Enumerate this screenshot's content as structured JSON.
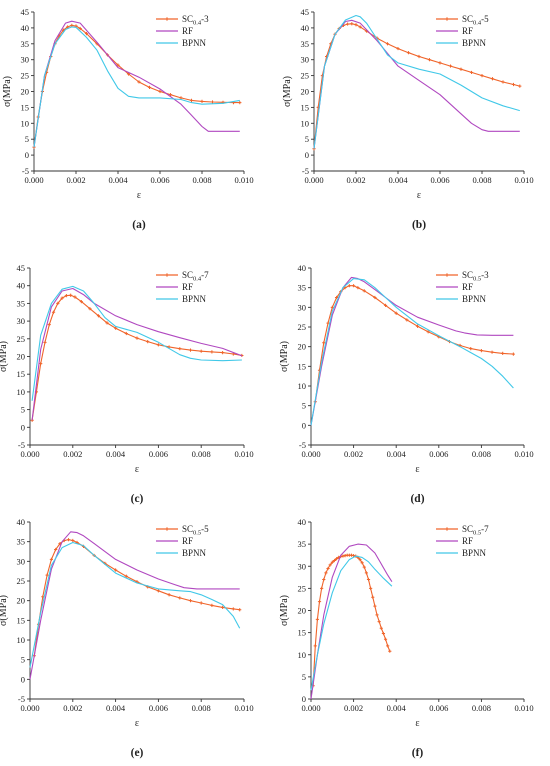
{
  "chart_data": [
    {
      "type": "line",
      "panel": "(a)",
      "xlabel": "ε",
      "ylabel": "σ(MPa)",
      "xlim": [
        0,
        0.01
      ],
      "ylim": [
        -5,
        45
      ],
      "xticks": [
        "0.000",
        "0.002",
        "0.004",
        "0.006",
        "0.008",
        "0.010"
      ],
      "yticks": [
        "-5",
        "0",
        "5",
        "10",
        "15",
        "20",
        "25",
        "30",
        "35",
        "40",
        "45"
      ],
      "legend_position": "top-right",
      "series": [
        {
          "name": "SC0.4-3",
          "label_main": "SC",
          "label_sub": "0.4",
          "label_suffix": "-3",
          "color": "#f0642a",
          "marker": true,
          "x": [
            0,
            0.0002,
            0.0004,
            0.0006,
            0.0008,
            0.001,
            0.0012,
            0.0014,
            0.0016,
            0.0018,
            0.002,
            0.0022,
            0.0025,
            0.003,
            0.0035,
            0.004,
            0.0045,
            0.005,
            0.0055,
            0.006,
            0.0065,
            0.007,
            0.0075,
            0.008,
            0.0085,
            0.009,
            0.0095,
            0.0098
          ],
          "y": [
            2.5,
            12,
            20,
            26,
            31,
            35,
            37.5,
            39.3,
            40.3,
            40.8,
            40.6,
            39.8,
            38.2,
            35,
            31.5,
            28.3,
            25.5,
            23,
            21.3,
            20,
            19,
            18,
            17.2,
            16.9,
            16.7,
            16.6,
            16.5,
            16.5
          ]
        },
        {
          "name": "RF",
          "color": "#b048c0",
          "marker": false,
          "x": [
            0,
            0.0005,
            0.001,
            0.0015,
            0.0018,
            0.0022,
            0.003,
            0.004,
            0.005,
            0.006,
            0.007,
            0.0075,
            0.008,
            0.0083,
            0.009,
            0.0098
          ],
          "y": [
            2.5,
            25,
            36,
            41.5,
            42.1,
            41.5,
            35.5,
            27.5,
            24.5,
            20.8,
            16,
            12.5,
            9,
            7.5,
            7.5,
            7.5
          ]
        },
        {
          "name": "BPNN",
          "color": "#40c8e8",
          "marker": false,
          "x": [
            0,
            0.0005,
            0.001,
            0.0015,
            0.0018,
            0.002,
            0.0025,
            0.003,
            0.0035,
            0.004,
            0.0045,
            0.005,
            0.006,
            0.007,
            0.0075,
            0.008,
            0.009,
            0.0098
          ],
          "y": [
            2.5,
            25,
            35,
            39.5,
            40.3,
            40.2,
            37,
            33,
            26.5,
            21,
            18.5,
            18,
            18,
            17.5,
            16.5,
            16,
            16.3,
            17.2
          ]
        }
      ]
    },
    {
      "type": "line",
      "panel": "(b)",
      "xlabel": "ε",
      "ylabel": "σ(MPa)",
      "xlim": [
        0,
        0.01
      ],
      "ylim": [
        -5,
        45
      ],
      "xticks": [
        "0.000",
        "0.002",
        "0.004",
        "0.006",
        "0.008",
        "0.010"
      ],
      "yticks": [
        "-5",
        "0",
        "5",
        "10",
        "15",
        "20",
        "25",
        "30",
        "35",
        "40",
        "45"
      ],
      "legend_position": "top-right",
      "series": [
        {
          "name": "SC0.4-5",
          "label_main": "SC",
          "label_sub": "0.4",
          "label_suffix": "-5",
          "color": "#f0642a",
          "marker": true,
          "x": [
            0,
            0.0002,
            0.0004,
            0.0006,
            0.0008,
            0.001,
            0.0012,
            0.0014,
            0.0016,
            0.0018,
            0.002,
            0.0022,
            0.0025,
            0.003,
            0.0035,
            0.004,
            0.0045,
            0.005,
            0.0055,
            0.006,
            0.0065,
            0.007,
            0.0075,
            0.008,
            0.0085,
            0.009,
            0.0095,
            0.0098
          ],
          "y": [
            2,
            15,
            25,
            31,
            35,
            38,
            39.8,
            40.8,
            41.2,
            41.3,
            41,
            40.3,
            39,
            36.8,
            35,
            33.5,
            32.2,
            31,
            30,
            29,
            28,
            27,
            26,
            25,
            24,
            23,
            22.2,
            21.7
          ]
        },
        {
          "name": "RF",
          "color": "#b048c0",
          "marker": false,
          "x": [
            0,
            0.0005,
            0.001,
            0.0015,
            0.0018,
            0.0022,
            0.003,
            0.004,
            0.005,
            0.006,
            0.007,
            0.0075,
            0.008,
            0.0083,
            0.009,
            0.0098
          ],
          "y": [
            2,
            28,
            38,
            42,
            42.4,
            41.5,
            36,
            28,
            23.5,
            19,
            13,
            10,
            8,
            7.5,
            7.5,
            7.5
          ]
        },
        {
          "name": "BPNN",
          "color": "#40c8e8",
          "marker": false,
          "x": [
            0,
            0.0005,
            0.001,
            0.0015,
            0.002,
            0.0022,
            0.0025,
            0.003,
            0.0035,
            0.004,
            0.005,
            0.006,
            0.007,
            0.008,
            0.009,
            0.0098
          ],
          "y": [
            2,
            28,
            38,
            42.5,
            43.9,
            43.5,
            41.5,
            36.5,
            31.5,
            29,
            27,
            25.5,
            22,
            18,
            15.5,
            14
          ]
        }
      ]
    },
    {
      "type": "line",
      "panel": "(c)",
      "xlabel": "ε",
      "ylabel": "σ(MPa)",
      "xlim": [
        0,
        0.01
      ],
      "ylim": [
        -5,
        45
      ],
      "xticks": [
        "0.000",
        "0.002",
        "0.004",
        "0.006",
        "0.008",
        "0.010"
      ],
      "yticks": [
        "-5",
        "0",
        "5",
        "10",
        "15",
        "20",
        "25",
        "30",
        "35",
        "40",
        "45"
      ],
      "legend_position": "top-right",
      "series": [
        {
          "name": "SC0.4-7",
          "label_main": "SC",
          "label_sub": "0.4",
          "label_suffix": "-7",
          "color": "#f0642a",
          "marker": true,
          "x": [
            0.0001,
            0.0003,
            0.0005,
            0.0007,
            0.0009,
            0.0011,
            0.0013,
            0.0015,
            0.0017,
            0.0019,
            0.0021,
            0.0024,
            0.0028,
            0.0032,
            0.0036,
            0.004,
            0.0045,
            0.005,
            0.0055,
            0.006,
            0.0065,
            0.007,
            0.0075,
            0.008,
            0.0085,
            0.009,
            0.0095,
            0.0099
          ],
          "y": [
            2,
            10,
            18,
            24,
            29,
            32.5,
            35,
            36.5,
            37.2,
            37.3,
            36.8,
            35.5,
            33.5,
            31.5,
            29.5,
            28,
            26.5,
            25.2,
            24.2,
            23.3,
            22.7,
            22.2,
            21.8,
            21.5,
            21.3,
            21.1,
            20.7,
            20.3
          ]
        },
        {
          "name": "RF",
          "color": "#b048c0",
          "marker": false,
          "x": [
            0.0001,
            0.0005,
            0.001,
            0.0015,
            0.002,
            0.0025,
            0.003,
            0.004,
            0.005,
            0.006,
            0.007,
            0.008,
            0.009,
            0.0099
          ],
          "y": [
            2,
            22,
            34,
            38.5,
            39.2,
            37.5,
            35,
            31.5,
            29,
            27,
            25.3,
            23.7,
            22.3,
            20.2
          ]
        },
        {
          "name": "BPNN",
          "color": "#40c8e8",
          "marker": false,
          "x": [
            0.0001,
            0.0005,
            0.001,
            0.0015,
            0.002,
            0.0025,
            0.003,
            0.0035,
            0.004,
            0.005,
            0.006,
            0.007,
            0.0075,
            0.008,
            0.009,
            0.0099
          ],
          "y": [
            7.5,
            26,
            35,
            39,
            39.8,
            38.5,
            35,
            31,
            28.5,
            26.8,
            24,
            20.5,
            19.5,
            19,
            18.8,
            19
          ]
        }
      ]
    },
    {
      "type": "line",
      "panel": "(d)",
      "xlabel": "ε",
      "ylabel": "σ(MPa)",
      "xlim": [
        0,
        0.01
      ],
      "ylim": [
        -5,
        40
      ],
      "xticks": [
        "0.000",
        "0.002",
        "0.004",
        "0.006",
        "0.008",
        "0.010"
      ],
      "yticks": [
        "-5",
        "0",
        "5",
        "10",
        "15",
        "20",
        "25",
        "30",
        "35",
        "40"
      ],
      "legend_position": "top-right",
      "series": [
        {
          "name": "SC0.5-3",
          "label_main": "SC",
          "label_sub": "0.5",
          "label_suffix": "-3",
          "color": "#f0642a",
          "marker": true,
          "x": [
            0.0002,
            0.0004,
            0.0006,
            0.0008,
            0.001,
            0.0012,
            0.0014,
            0.0016,
            0.0018,
            0.002,
            0.0022,
            0.0025,
            0.003,
            0.0035,
            0.004,
            0.0045,
            0.005,
            0.0055,
            0.006,
            0.0065,
            0.007,
            0.0075,
            0.008,
            0.0085,
            0.009,
            0.0095
          ],
          "y": [
            6,
            14,
            21,
            26,
            30,
            32.5,
            34,
            35,
            35.5,
            35.5,
            35,
            34.2,
            32.5,
            30.5,
            28.5,
            26.8,
            25.2,
            23.8,
            22.5,
            21.3,
            20.3,
            19.5,
            19,
            18.6,
            18.3,
            18.1
          ]
        },
        {
          "name": "RF",
          "color": "#b048c0",
          "marker": false,
          "x": [
            0,
            0.0005,
            0.001,
            0.0015,
            0.0019,
            0.0022,
            0.0025,
            0.003,
            0.004,
            0.005,
            0.006,
            0.0068,
            0.0072,
            0.0078,
            0.0085,
            0.0095
          ],
          "y": [
            0,
            15,
            28,
            35,
            37.6,
            37.3,
            36.5,
            34.5,
            30.5,
            27.5,
            25.5,
            24,
            23.5,
            23,
            22.9,
            22.9
          ]
        },
        {
          "name": "BPNN",
          "color": "#40c8e8",
          "marker": false,
          "x": [
            0,
            0.0005,
            0.001,
            0.0015,
            0.002,
            0.0025,
            0.003,
            0.004,
            0.005,
            0.006,
            0.007,
            0.0075,
            0.008,
            0.0085,
            0.009,
            0.0095
          ],
          "y": [
            0,
            16,
            29,
            35,
            37.3,
            37,
            35,
            30,
            25.8,
            22.8,
            20,
            18.5,
            17,
            15,
            12.5,
            9.5
          ]
        }
      ]
    },
    {
      "type": "line",
      "panel": "(e)",
      "xlabel": "ε",
      "ylabel": "σ(MPa)",
      "xlim": [
        0,
        0.01
      ],
      "ylim": [
        -5,
        40
      ],
      "xticks": [
        "0.000",
        "0.002",
        "0.004",
        "0.006",
        "0.008",
        "0.010"
      ],
      "yticks": [
        "-5",
        "0",
        "5",
        "10",
        "15",
        "20",
        "25",
        "30",
        "35",
        "40"
      ],
      "legend_position": "top-right",
      "series": [
        {
          "name": "SC0.5-5",
          "label_main": "SC",
          "label_sub": "0.5",
          "label_suffix": "-5",
          "color": "#f0642a",
          "marker": true,
          "x": [
            0.0002,
            0.0004,
            0.0006,
            0.0008,
            0.001,
            0.0012,
            0.0014,
            0.0016,
            0.0018,
            0.002,
            0.0022,
            0.0025,
            0.003,
            0.0035,
            0.004,
            0.0045,
            0.005,
            0.0055,
            0.006,
            0.0065,
            0.007,
            0.0075,
            0.008,
            0.0085,
            0.009,
            0.0095,
            0.0098
          ],
          "y": [
            6,
            14,
            21,
            26.5,
            30.5,
            33,
            34.5,
            35.3,
            35.5,
            35.3,
            34.8,
            33.8,
            31.5,
            29.5,
            27.8,
            26.2,
            24.8,
            23.5,
            22.5,
            21.5,
            20.7,
            20,
            19.4,
            18.8,
            18.3,
            17.9,
            17.7
          ]
        },
        {
          "name": "RF",
          "color": "#b048c0",
          "marker": false,
          "x": [
            0,
            0.0005,
            0.001,
            0.0015,
            0.0019,
            0.0022,
            0.0025,
            0.003,
            0.004,
            0.005,
            0.006,
            0.0068,
            0.0072,
            0.0078,
            0.0085,
            0.0098
          ],
          "y": [
            0,
            15,
            28,
            35,
            37.5,
            37.3,
            36.5,
            34.5,
            30.5,
            27.8,
            25.5,
            24,
            23.3,
            23,
            23,
            23
          ]
        },
        {
          "name": "BPNN",
          "color": "#40c8e8",
          "marker": false,
          "x": [
            0,
            0.0005,
            0.001,
            0.0015,
            0.002,
            0.0025,
            0.003,
            0.004,
            0.005,
            0.006,
            0.007,
            0.0075,
            0.008,
            0.0085,
            0.009,
            0.0095,
            0.0098
          ],
          "y": [
            3,
            17,
            29,
            33.5,
            34.8,
            34,
            31.5,
            27,
            24.5,
            23,
            22.5,
            22.3,
            21.5,
            20.3,
            19,
            16,
            13
          ]
        }
      ]
    },
    {
      "type": "line",
      "panel": "(f)",
      "xlabel": "ε",
      "ylabel": "σ(MPa)",
      "xlim": [
        0,
        0.01
      ],
      "ylim": [
        0,
        40
      ],
      "xticks": [
        "0.000",
        "0.002",
        "0.004",
        "0.006",
        "0.008",
        "0.010"
      ],
      "yticks": [
        "0",
        "5",
        "10",
        "15",
        "20",
        "25",
        "30",
        "35",
        "40"
      ],
      "legend_position": "top-right",
      "series": [
        {
          "name": "SC0.5-7",
          "label_main": "SC",
          "label_sub": "0.5",
          "label_suffix": "-7",
          "color": "#f0642a",
          "marker": true,
          "x": [
            0.0001,
            0.0002,
            0.0003,
            0.0004,
            0.0005,
            0.0006,
            0.0007,
            0.0008,
            0.0009,
            0.001,
            0.0011,
            0.0012,
            0.0013,
            0.0014,
            0.0015,
            0.0016,
            0.0017,
            0.0018,
            0.0019,
            0.002,
            0.0021,
            0.0022,
            0.0023,
            0.0024,
            0.0025,
            0.0026,
            0.0027,
            0.0028,
            0.0029,
            0.003,
            0.0031,
            0.0032,
            0.0033,
            0.0034,
            0.0035,
            0.0036,
            0.0037
          ],
          "y": [
            3,
            12,
            18,
            22,
            25,
            27,
            28.5,
            29.5,
            30.3,
            30.9,
            31.3,
            31.7,
            32,
            32.2,
            32.3,
            32.4,
            32.5,
            32.5,
            32.5,
            32.4,
            32.3,
            32,
            31.5,
            30.8,
            29.8,
            28.5,
            27,
            25,
            23,
            21,
            19,
            17.5,
            16,
            14.8,
            13.5,
            12,
            10.8
          ]
        },
        {
          "name": "RF",
          "color": "#b048c0",
          "marker": false,
          "x": [
            0,
            0.0003,
            0.0006,
            0.001,
            0.0014,
            0.0018,
            0.0022,
            0.0026,
            0.003,
            0.0033,
            0.0036,
            0.0038
          ],
          "y": [
            0,
            10,
            19,
            27.5,
            32.5,
            34.5,
            35,
            34.8,
            33,
            30.5,
            28,
            26.5
          ]
        },
        {
          "name": "BPNN",
          "color": "#40c8e8",
          "marker": false,
          "x": [
            0,
            0.0003,
            0.0006,
            0.001,
            0.0014,
            0.0018,
            0.0021,
            0.0024,
            0.0027,
            0.003,
            0.0034,
            0.0038
          ],
          "y": [
            2,
            10,
            17,
            24,
            29,
            31.5,
            32.3,
            32,
            31,
            29.3,
            27.3,
            25.5
          ]
        }
      ]
    }
  ]
}
